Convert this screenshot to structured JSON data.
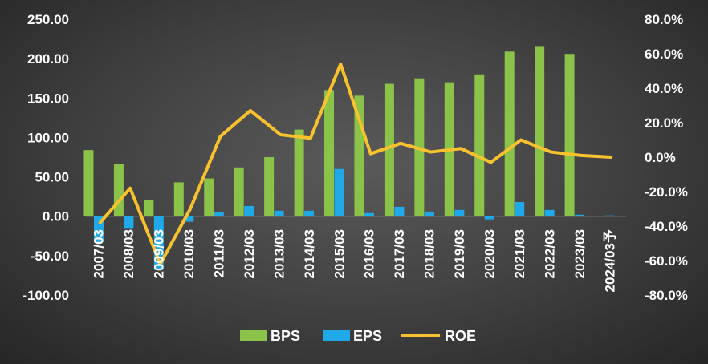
{
  "chart_data": {
    "type": "bar",
    "categories": [
      "2007/03",
      "2008/03",
      "2009/03",
      "2010/03",
      "2011/03",
      "2012/03",
      "2013/03",
      "2014/03",
      "2015/03",
      "2016/03",
      "2017/03",
      "2018/03",
      "2019/03",
      "2020/03",
      "2021/03",
      "2022/03",
      "2023/03",
      "2024/03予"
    ],
    "series": [
      {
        "name": "BPS",
        "type": "bar",
        "axis": "left",
        "color": "#8BC34A",
        "values": [
          84,
          66,
          21,
          43,
          48,
          62,
          75,
          110,
          160,
          153,
          168,
          175,
          170,
          180,
          209,
          216,
          206,
          null
        ]
      },
      {
        "name": "EPS",
        "type": "bar",
        "axis": "left",
        "color": "#1FA9E8",
        "values": [
          -33,
          -15,
          -68,
          -7,
          5,
          13,
          7,
          7,
          60,
          4,
          12,
          6,
          8,
          -4,
          18,
          8,
          2,
          1
        ]
      },
      {
        "name": "ROE",
        "type": "line",
        "axis": "right",
        "unit": "%",
        "color": "#F7C22E",
        "values": [
          -38,
          -18,
          -62,
          -30,
          12,
          27,
          13,
          11,
          54,
          2,
          8,
          3,
          5,
          -3,
          10,
          3,
          1,
          0
        ]
      }
    ],
    "y_left": {
      "ylim": [
        -100,
        250
      ],
      "ticks": [
        "-100.00",
        "-50.00",
        "0.00",
        "50.00",
        "100.00",
        "150.00",
        "200.00",
        "250.00"
      ]
    },
    "y_right": {
      "ylim": [
        -80,
        80
      ],
      "ticks": [
        "-80.0%",
        "-60.0%",
        "-40.0%",
        "-20.0%",
        "0.0%",
        "20.0%",
        "40.0%",
        "60.0%",
        "80.0%"
      ]
    },
    "legend": {
      "position": "bottom",
      "entries": [
        "BPS",
        "EPS",
        "ROE"
      ]
    },
    "grid": false,
    "title": "",
    "xlabel": "",
    "ylabel": ""
  }
}
